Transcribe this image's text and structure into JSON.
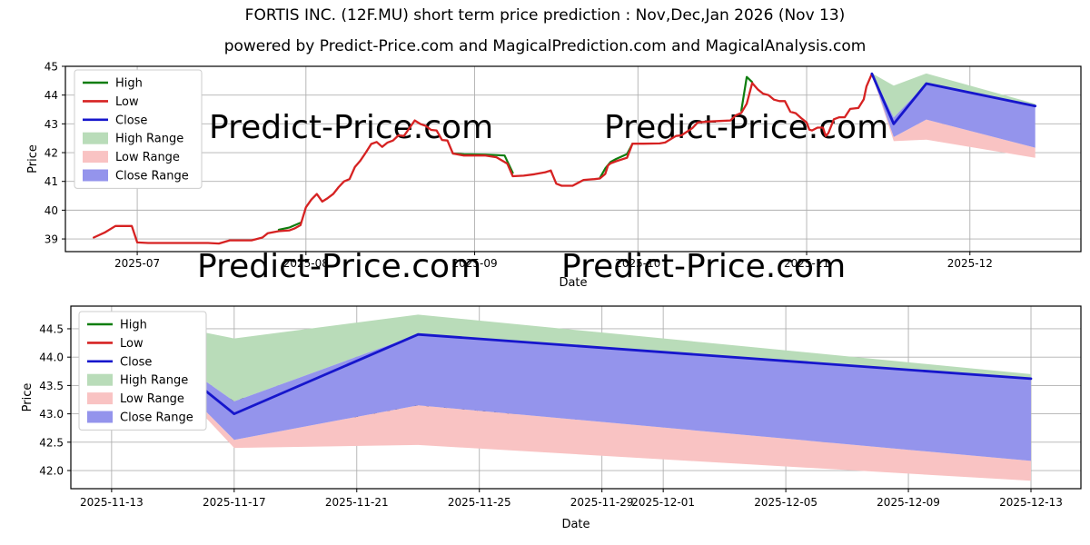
{
  "figure": {
    "title": "FORTIS INC. (12F.MU) short term price prediction : Nov,Dec,Jan 2026 (Nov 13)",
    "subtitle": "powered by Predict-Price.com and MagicalPrediction.com and MagicalAnalysis.com",
    "watermark": "Predict-Price.com"
  },
  "colors": {
    "high_line": "#0e7d0e",
    "low_line": "#d62222",
    "close_line": "#1616cc",
    "high_range": "#b9dcb9",
    "low_range": "#f9c3c3",
    "close_range": "#9494ec",
    "grid": "#b0b0b0",
    "spine": "#000000",
    "watermark": "#e9e9e9",
    "legend_border": "#cccccc"
  },
  "legend": [
    {
      "label": "High",
      "swatch": "line",
      "color_key": "high_line"
    },
    {
      "label": "Low",
      "swatch": "line",
      "color_key": "low_line"
    },
    {
      "label": "Close",
      "swatch": "line",
      "color_key": "close_line"
    },
    {
      "label": "High Range",
      "swatch": "patch",
      "color_key": "high_range"
    },
    {
      "label": "Low Range",
      "swatch": "patch",
      "color_key": "low_range"
    },
    {
      "label": "Close Range",
      "swatch": "patch",
      "color_key": "close_range"
    }
  ],
  "chart_data": [
    {
      "id": "price-history",
      "type": "line",
      "xlabel": "Date",
      "ylabel": "Price",
      "x_unit": "days since 2025-06-23",
      "xlim": [
        -5.2,
        181.4
      ],
      "ylim": [
        38.56,
        45.0
      ],
      "x_ticks": [
        {
          "day": 8,
          "label": "2025-07"
        },
        {
          "day": 39,
          "label": "2025-08"
        },
        {
          "day": 70,
          "label": "2025-09"
        },
        {
          "day": 100,
          "label": "2025-10"
        },
        {
          "day": 131,
          "label": "2025-11"
        },
        {
          "day": 161,
          "label": "2025-12"
        }
      ],
      "y_ticks": [
        {
          "v": 39,
          "label": "39"
        },
        {
          "v": 40,
          "label": "40"
        },
        {
          "v": 41,
          "label": "41"
        },
        {
          "v": 42,
          "label": "42"
        },
        {
          "v": 43,
          "label": "43"
        },
        {
          "v": 44,
          "label": "44"
        },
        {
          "v": 45,
          "label": "45"
        }
      ],
      "series_low_points": [
        [
          0,
          39.05
        ],
        [
          2,
          39.22
        ],
        [
          4,
          39.45
        ],
        [
          7,
          39.45
        ],
        [
          8,
          38.88
        ],
        [
          10,
          38.86
        ],
        [
          21,
          38.86
        ],
        [
          23,
          38.84
        ],
        [
          25,
          38.95
        ],
        [
          29,
          38.95
        ],
        [
          31,
          39.05
        ],
        [
          32,
          39.2
        ],
        [
          34,
          39.27
        ],
        [
          36,
          39.3
        ],
        [
          37,
          39.37
        ],
        [
          38,
          39.48
        ],
        [
          39,
          40.1
        ],
        [
          40,
          40.37
        ],
        [
          41,
          40.56
        ],
        [
          42,
          40.3
        ],
        [
          43,
          40.42
        ],
        [
          44,
          40.56
        ],
        [
          45,
          40.8
        ],
        [
          46,
          41.0
        ],
        [
          47,
          41.08
        ],
        [
          48,
          41.5
        ],
        [
          49,
          41.72
        ],
        [
          50,
          42.0
        ],
        [
          51,
          42.3
        ],
        [
          52,
          42.37
        ],
        [
          53,
          42.2
        ],
        [
          54,
          42.35
        ],
        [
          55,
          42.42
        ],
        [
          56,
          42.6
        ],
        [
          57,
          42.58
        ],
        [
          59,
          43.12
        ],
        [
          60,
          43.0
        ],
        [
          61,
          42.93
        ],
        [
          62,
          42.79
        ],
        [
          63,
          42.77
        ],
        [
          64,
          42.44
        ],
        [
          65,
          42.42
        ],
        [
          66,
          41.97
        ],
        [
          68,
          41.9
        ],
        [
          72,
          41.9
        ],
        [
          74,
          41.84
        ],
        [
          76,
          41.62
        ],
        [
          77,
          41.18
        ],
        [
          79,
          41.2
        ],
        [
          81,
          41.25
        ],
        [
          83,
          41.32
        ],
        [
          84,
          41.38
        ],
        [
          84.5,
          41.15
        ],
        [
          85,
          40.92
        ],
        [
          86,
          40.85
        ],
        [
          88,
          40.85
        ],
        [
          89,
          40.95
        ],
        [
          90,
          41.05
        ],
        [
          92,
          41.08
        ],
        [
          93,
          41.1
        ],
        [
          94,
          41.26
        ],
        [
          94.5,
          41.55
        ],
        [
          95,
          41.63
        ],
        [
          96,
          41.7
        ],
        [
          98,
          41.82
        ],
        [
          99,
          42.31
        ],
        [
          101,
          42.31
        ],
        [
          104,
          42.32
        ],
        [
          105,
          42.35
        ],
        [
          107,
          42.58
        ],
        [
          108,
          42.6
        ],
        [
          110,
          42.85
        ],
        [
          111,
          43.05
        ],
        [
          113,
          43.08
        ],
        [
          115,
          43.1
        ],
        [
          117,
          43.12
        ],
        [
          118,
          43.3
        ],
        [
          119,
          43.38
        ],
        [
          120,
          43.7
        ],
        [
          121,
          44.42
        ],
        [
          122,
          44.2
        ],
        [
          123,
          44.05
        ],
        [
          124,
          44.0
        ],
        [
          125,
          43.84
        ],
        [
          126,
          43.79
        ],
        [
          127,
          43.79
        ],
        [
          128,
          43.42
        ],
        [
          129,
          43.37
        ],
        [
          130,
          43.2
        ],
        [
          131,
          43.05
        ],
        [
          131.5,
          42.8
        ],
        [
          132,
          42.77
        ],
        [
          133,
          42.87
        ],
        [
          134,
          42.87
        ],
        [
          134.5,
          42.58
        ],
        [
          135,
          42.68
        ],
        [
          136,
          43.16
        ],
        [
          137,
          43.23
        ],
        [
          138,
          43.23
        ],
        [
          139,
          43.52
        ],
        [
          140.5,
          43.55
        ],
        [
          141.5,
          43.85
        ],
        [
          142,
          44.3
        ],
        [
          143,
          44.74
        ]
      ],
      "series_high_visible_segments": [
        [
          [
            34,
            39.32
          ],
          [
            36,
            39.4
          ],
          [
            38,
            39.56
          ]
        ],
        [
          [
            66,
            41.97
          ],
          [
            68,
            41.94
          ],
          [
            72,
            41.93
          ],
          [
            75.5,
            41.9
          ],
          [
            77,
            41.3
          ]
        ],
        [
          [
            93,
            41.12
          ],
          [
            94,
            41.45
          ],
          [
            95,
            41.68
          ],
          [
            96,
            41.78
          ],
          [
            98,
            41.95
          ],
          [
            99,
            42.31
          ]
        ],
        [
          [
            119,
            43.45
          ],
          [
            120,
            44.63
          ],
          [
            121,
            44.45
          ]
        ]
      ],
      "prediction": {
        "days": [
          143,
          147,
          153,
          173
        ],
        "dates": [
          "2025-11-13",
          "2025-11-17",
          "2025-11-23",
          "2025-12-13"
        ],
        "close": [
          44.74,
          43.0,
          44.4,
          43.62
        ],
        "high_range_top": [
          44.76,
          44.33,
          44.75,
          43.7
        ],
        "range_mid": [
          44.74,
          43.22,
          44.4,
          43.64
        ],
        "close_range_bottom": [
          44.72,
          42.54,
          43.15,
          42.17
        ],
        "low_range_bottom": [
          44.7,
          42.4,
          42.45,
          41.82
        ]
      }
    },
    {
      "id": "prediction-zoom",
      "type": "line",
      "xlabel": "Date",
      "ylabel": "Price",
      "x_unit": "days since 2025-06-23",
      "xlim": [
        141.67,
        174.63
      ],
      "ylim": [
        41.68,
        44.9
      ],
      "x_ticks": [
        {
          "day": 143,
          "label": "2025-11-13"
        },
        {
          "day": 147,
          "label": "2025-11-17"
        },
        {
          "day": 151,
          "label": "2025-11-21"
        },
        {
          "day": 155,
          "label": "2025-11-25"
        },
        {
          "day": 159,
          "label": "2025-11-29"
        },
        {
          "day": 161,
          "label": "2025-12-01"
        },
        {
          "day": 165,
          "label": "2025-12-05"
        },
        {
          "day": 169,
          "label": "2025-12-09"
        },
        {
          "day": 173,
          "label": "2025-12-13"
        }
      ],
      "y_ticks": [
        {
          "v": 42.0,
          "label": "42.0"
        },
        {
          "v": 42.5,
          "label": "42.5"
        },
        {
          "v": 43.0,
          "label": "43.0"
        },
        {
          "v": 43.5,
          "label": "43.5"
        },
        {
          "v": 44.0,
          "label": "44.0"
        },
        {
          "v": 44.5,
          "label": "44.5"
        }
      ],
      "prediction": {
        "days": [
          143,
          147,
          153,
          173
        ],
        "dates": [
          "2025-11-13",
          "2025-11-17",
          "2025-11-23",
          "2025-12-13"
        ],
        "close": [
          44.74,
          43.0,
          44.4,
          43.62
        ],
        "high_range_top": [
          44.76,
          44.33,
          44.75,
          43.7
        ],
        "range_mid": [
          44.74,
          43.22,
          44.4,
          43.64
        ],
        "close_range_bottom": [
          44.72,
          42.54,
          43.15,
          42.17
        ],
        "low_range_bottom": [
          44.7,
          42.4,
          42.45,
          41.82
        ]
      }
    }
  ]
}
